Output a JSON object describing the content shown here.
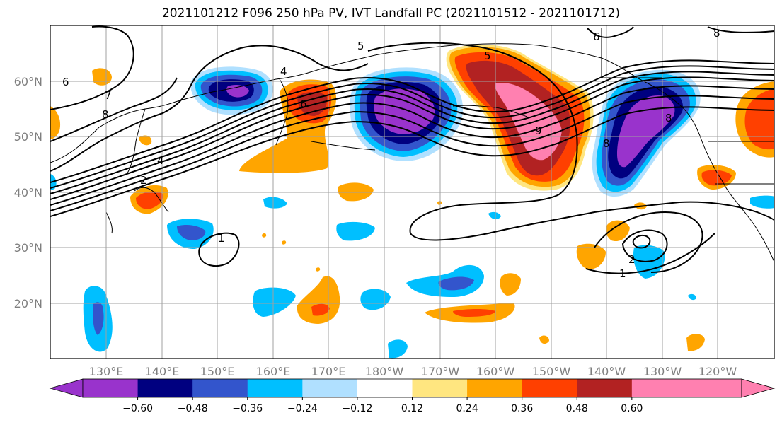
{
  "title": "2021101212 F096 250 hPa PV, IVT Landfall PC (2021101512 - 2021101712)",
  "lat_labels": [
    "60°N",
    "50°N",
    "40°N",
    "30°N",
    "20°N"
  ],
  "lon_labels": [
    "130°E",
    "140°E",
    "150°E",
    "160°E",
    "170°E",
    "180°W",
    "170°W",
    "160°W",
    "150°W",
    "140°W",
    "130°W",
    "120°W"
  ],
  "colorbar": {
    "ticks": [
      "−0.60",
      "−0.48",
      "−0.36",
      "−0.24",
      "−0.12",
      "0.12",
      "0.24",
      "0.36",
      "0.48",
      "0.60"
    ],
    "colors": [
      "#9933cc",
      "#000080",
      "#3355cc",
      "#00bfff",
      "#b0e0ff",
      "#ffffff",
      "#ffe680",
      "#ffa500",
      "#ff4000",
      "#b22222",
      "#ff80b0",
      "#ff80b0"
    ]
  },
  "contour_labels": [
    "5",
    "6",
    "6",
    "7",
    "8",
    "8",
    "4",
    "4",
    "5",
    "2",
    "9",
    "8",
    "1",
    "2",
    "1",
    "6",
    "8"
  ]
}
